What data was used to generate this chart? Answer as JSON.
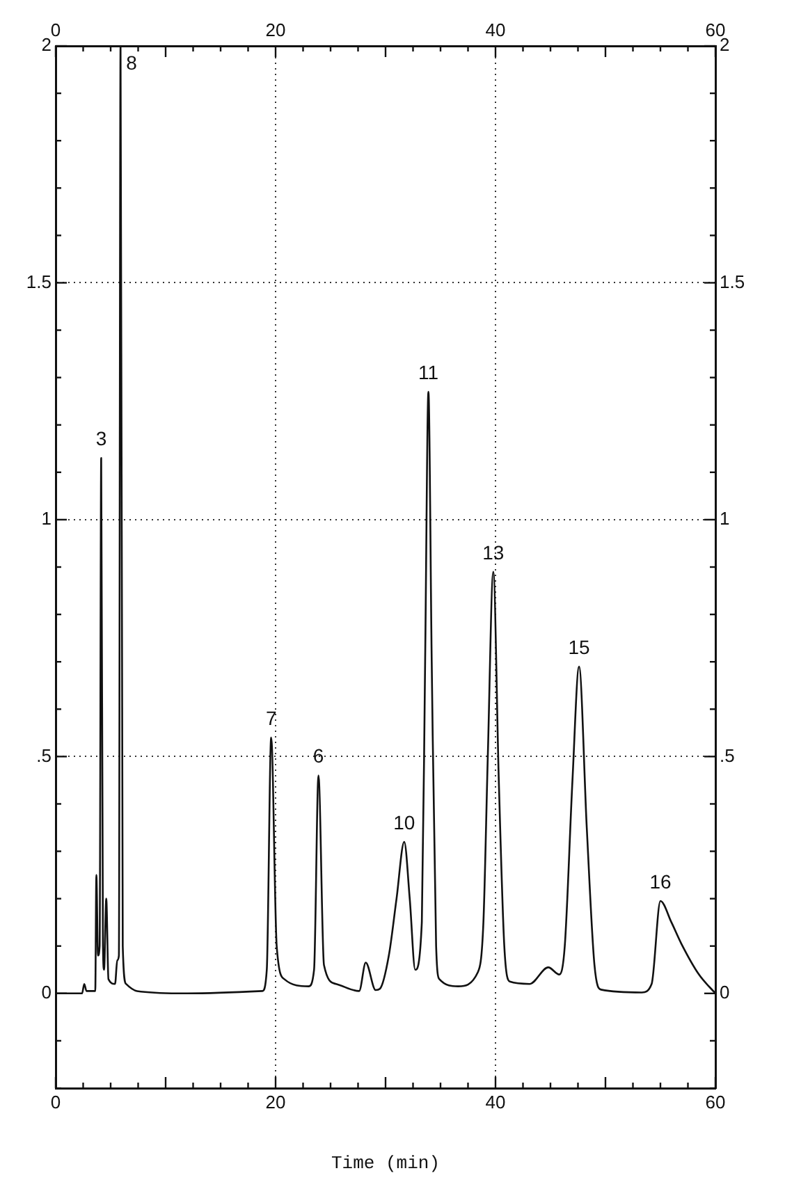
{
  "chart_data": {
    "type": "line",
    "xlabel": "Time (min)",
    "x": [
      0,
      2.4,
      2.6,
      2.8,
      3.6,
      3.7,
      3.85,
      4.0,
      4.14,
      4.3,
      4.4,
      4.6,
      4.8,
      5.4,
      5.6,
      5.75,
      5.9,
      6.1,
      6.4,
      7.4,
      12,
      18.8,
      19.2,
      19.6,
      20.1,
      20.8,
      23.0,
      23.5,
      23.9,
      24.4,
      25.5,
      27.6,
      28.2,
      29.1,
      29.5,
      30.3,
      31.0,
      31.7,
      32.2,
      32.7,
      33.3,
      33.6,
      33.9,
      34.2,
      34.6,
      34.9,
      36.6,
      38.4,
      38.9,
      39.3,
      39.8,
      40.3,
      40.8,
      41.3,
      43.1,
      44.8,
      45.8,
      46.3,
      47.0,
      47.6,
      48.3,
      49.0,
      49.6,
      53.3,
      54.2,
      55.0,
      56.0,
      56.9,
      58.5,
      60
    ],
    "series": [
      {
        "color": "#111111",
        "values": [
          0,
          0,
          0.02,
          0.005,
          0.005,
          0.25,
          0.08,
          0.1,
          1.13,
          0.1,
          0.05,
          0.2,
          0.03,
          0.02,
          0.07,
          0.08,
          2.0,
          0.1,
          0.02,
          0.005,
          0,
          0.005,
          0.05,
          0.54,
          0.1,
          0.03,
          0.015,
          0.05,
          0.46,
          0.06,
          0.02,
          0.005,
          0.065,
          0.007,
          0.01,
          0.08,
          0.2,
          0.32,
          0.2,
          0.05,
          0.15,
          0.7,
          1.27,
          0.7,
          0.1,
          0.03,
          0.015,
          0.045,
          0.15,
          0.5,
          0.89,
          0.45,
          0.1,
          0.025,
          0.02,
          0.055,
          0.04,
          0.1,
          0.45,
          0.69,
          0.35,
          0.06,
          0.008,
          0.002,
          0.02,
          0.195,
          0.15,
          0.105,
          0.04,
          0
        ]
      }
    ],
    "xlim": [
      0,
      60
    ],
    "xticks": [
      0,
      {
        "value": 2.5,
        "label": null
      },
      {
        "value": 5,
        "label": null
      },
      {
        "value": 7.5,
        "label": null
      },
      {
        "value": 10,
        "label": null
      },
      {
        "value": 12.5,
        "label": null
      },
      {
        "value": 15,
        "label": null
      },
      {
        "value": 17.5,
        "label": null
      },
      20,
      {
        "value": 22.5,
        "label": null
      },
      {
        "value": 25,
        "label": null
      },
      {
        "value": 27.5,
        "label": null
      },
      {
        "value": 30,
        "label": null
      },
      {
        "value": 32.5,
        "label": null
      },
      {
        "value": 35,
        "label": null
      },
      {
        "value": 37.5,
        "label": null
      },
      40,
      {
        "value": 42.5,
        "label": null
      },
      {
        "value": 45,
        "label": null
      },
      {
        "value": 47.5,
        "label": null
      },
      {
        "value": 50,
        "label": null
      },
      {
        "value": 52.5,
        "label": null
      },
      {
        "value": 55,
        "label": null
      },
      {
        "value": 57.5,
        "label": null
      },
      60
    ],
    "x2lim": [
      0,
      60
    ],
    "x2ticks": [
      0,
      {
        "value": 2.5,
        "label": null
      },
      {
        "value": 5,
        "label": null
      },
      {
        "value": 7.5,
        "label": null
      },
      {
        "value": 10,
        "label": null
      },
      {
        "value": 12.5,
        "label": null
      },
      {
        "value": 15,
        "label": null
      },
      {
        "value": 17.5,
        "label": null
      },
      20,
      {
        "value": 22.5,
        "label": null
      },
      {
        "value": 25,
        "label": null
      },
      {
        "value": 27.5,
        "label": null
      },
      {
        "value": 30,
        "label": null
      },
      {
        "value": 32.5,
        "label": null
      },
      {
        "value": 35,
        "label": null
      },
      {
        "value": 37.5,
        "label": null
      },
      40,
      {
        "value": 42.5,
        "label": null
      },
      {
        "value": 45,
        "label": null
      },
      {
        "value": 47.5,
        "label": null
      },
      {
        "value": 50,
        "label": null
      },
      {
        "value": 52.5,
        "label": null
      },
      {
        "value": 55,
        "label": null
      },
      {
        "value": 57.5,
        "label": null
      },
      60
    ],
    "ylim": [
      -0.2,
      2
    ],
    "yticks": [
      {
        "value": -0.2,
        "label": null
      },
      {
        "value": -0.1,
        "label": null
      },
      0,
      {
        "value": 0.1,
        "label": null
      },
      {
        "value": 0.2,
        "label": null
      },
      {
        "value": 0.3,
        "label": null
      },
      {
        "value": 0.4,
        "label": null
      },
      {
        "value": 0.5,
        "label": ".5"
      },
      {
        "value": 0.6,
        "label": null
      },
      {
        "value": 0.7,
        "label": null
      },
      {
        "value": 0.8,
        "label": null
      },
      {
        "value": 0.9,
        "label": null
      },
      1,
      {
        "value": 1.1,
        "label": null
      },
      {
        "value": 1.2,
        "label": null
      },
      {
        "value": 1.3,
        "label": null
      },
      {
        "value": 1.4,
        "label": null
      },
      1.5,
      {
        "value": 1.6,
        "label": null
      },
      {
        "value": 1.7,
        "label": null
      },
      {
        "value": 1.8,
        "label": null
      },
      {
        "value": 1.9,
        "label": null
      },
      2
    ],
    "y2lim": [
      -0.2,
      2
    ],
    "y2ticks": [
      {
        "value": -0.2,
        "label": null
      },
      {
        "value": -0.1,
        "label": null
      },
      0,
      {
        "value": 0.1,
        "label": null
      },
      {
        "value": 0.2,
        "label": null
      },
      {
        "value": 0.3,
        "label": null
      },
      {
        "value": 0.4,
        "label": null
      },
      {
        "value": 0.5,
        "label": ".5"
      },
      {
        "value": 0.6,
        "label": null
      },
      {
        "value": 0.7,
        "label": null
      },
      {
        "value": 0.8,
        "label": null
      },
      {
        "value": 0.9,
        "label": null
      },
      1,
      {
        "value": 1.1,
        "label": null
      },
      {
        "value": 1.2,
        "label": null
      },
      {
        "value": 1.3,
        "label": null
      },
      {
        "value": 1.4,
        "label": null
      },
      1.5,
      {
        "value": 1.6,
        "label": null
      },
      {
        "value": 1.7,
        "label": null
      },
      {
        "value": 1.8,
        "label": null
      },
      {
        "value": 1.9,
        "label": null
      },
      2
    ],
    "grid": true,
    "legend": false,
    "marker": "none",
    "annotations": [
      {
        "text": "3",
        "x": 4.14,
        "y": 1.13
      },
      {
        "text": "8",
        "x": 5.9,
        "y": 2.0
      },
      {
        "text": "7",
        "x": 19.6,
        "y": 0.54
      },
      {
        "text": "6",
        "x": 23.9,
        "y": 0.46
      },
      {
        "text": "10",
        "x": 31.7,
        "y": 0.32
      },
      {
        "text": "11",
        "x": 33.9,
        "y": 1.27
      },
      {
        "text": "13",
        "x": 39.8,
        "y": 0.89
      },
      {
        "text": "15",
        "x": 47.6,
        "y": 0.69
      },
      {
        "text": "16",
        "x": 55.0,
        "y": 0.195
      }
    ]
  }
}
